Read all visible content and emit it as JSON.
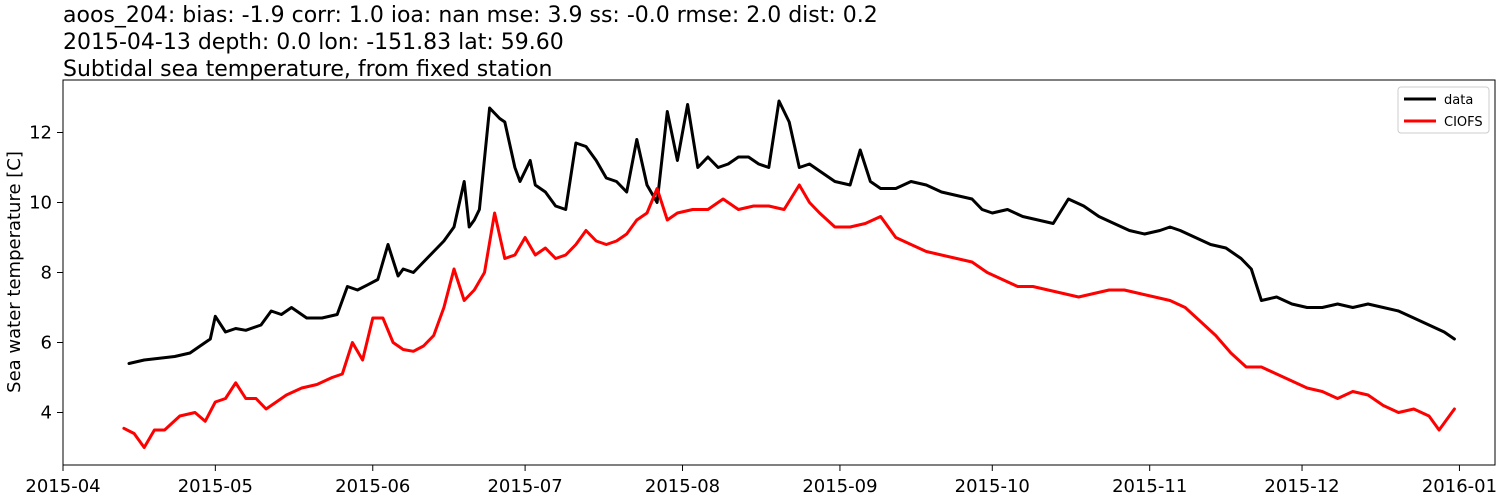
{
  "chart_data": {
    "type": "line",
    "title_lines": [
      "aoos_204: bias: -1.9  corr: 1.0  ioa: nan  mse: 3.9  ss: -0.0  rmse: 2.0  dist: 0.2",
      "2015-04-13 depth: 0.0 lon: -151.83 lat: 59.60",
      "Subtidal sea temperature, from fixed station"
    ],
    "xlabel": "",
    "ylabel": "Sea water temperature [C]",
    "xlim": [
      "2015-04-01",
      "2016-01-08"
    ],
    "ylim": [
      2.5,
      13.5
    ],
    "x_ticks": [
      "2015-04-01",
      "2015-05-01",
      "2015-06-01",
      "2015-07-01",
      "2015-08-01",
      "2015-09-01",
      "2015-10-01",
      "2015-11-01",
      "2015-12-01",
      "2016-01-01"
    ],
    "x_tick_labels": [
      "2015-04",
      "2015-05",
      "2015-06",
      "2015-07",
      "2015-08",
      "2015-09",
      "2015-10",
      "2015-11",
      "2015-12",
      "2016-01"
    ],
    "y_ticks": [
      4,
      6,
      8,
      10,
      12
    ],
    "y_tick_labels": [
      "4",
      "6",
      "8",
      "10",
      "12"
    ],
    "grid": false,
    "legend_position": "top-right",
    "series": [
      {
        "name": "data",
        "color": "#000000",
        "x": [
          "2015-04-14",
          "2015-04-17",
          "2015-04-20",
          "2015-04-23",
          "2015-04-26",
          "2015-04-28",
          "2015-04-30",
          "2015-05-01",
          "2015-05-03",
          "2015-05-05",
          "2015-05-07",
          "2015-05-10",
          "2015-05-12",
          "2015-05-14",
          "2015-05-16",
          "2015-05-19",
          "2015-05-22",
          "2015-05-25",
          "2015-05-27",
          "2015-05-29",
          "2015-05-31",
          "2015-06-02",
          "2015-06-04",
          "2015-06-06",
          "2015-06-07",
          "2015-06-09",
          "2015-06-11",
          "2015-06-13",
          "2015-06-15",
          "2015-06-17",
          "2015-06-19",
          "2015-06-20",
          "2015-06-21",
          "2015-06-22",
          "2015-06-24",
          "2015-06-26",
          "2015-06-27",
          "2015-06-29",
          "2015-06-30",
          "2015-07-02",
          "2015-07-03",
          "2015-07-05",
          "2015-07-07",
          "2015-07-09",
          "2015-07-11",
          "2015-07-13",
          "2015-07-15",
          "2015-07-17",
          "2015-07-19",
          "2015-07-21",
          "2015-07-23",
          "2015-07-25",
          "2015-07-27",
          "2015-07-29",
          "2015-07-31",
          "2015-08-02",
          "2015-08-04",
          "2015-08-06",
          "2015-08-08",
          "2015-08-10",
          "2015-08-12",
          "2015-08-14",
          "2015-08-16",
          "2015-08-18",
          "2015-08-20",
          "2015-08-22",
          "2015-08-24",
          "2015-08-26",
          "2015-08-28",
          "2015-08-31",
          "2015-09-03",
          "2015-09-05",
          "2015-09-07",
          "2015-09-09",
          "2015-09-12",
          "2015-09-15",
          "2015-09-18",
          "2015-09-21",
          "2015-09-24",
          "2015-09-27",
          "2015-09-29",
          "2015-10-01",
          "2015-10-04",
          "2015-10-07",
          "2015-10-10",
          "2015-10-13",
          "2015-10-16",
          "2015-10-19",
          "2015-10-22",
          "2015-10-25",
          "2015-10-28",
          "2015-10-31",
          "2015-11-03",
          "2015-11-05",
          "2015-11-07",
          "2015-11-10",
          "2015-11-13",
          "2015-11-16",
          "2015-11-19",
          "2015-11-21",
          "2015-11-23",
          "2015-11-26",
          "2015-11-29",
          "2015-12-02",
          "2015-12-05",
          "2015-12-08",
          "2015-12-11",
          "2015-12-14",
          "2015-12-17",
          "2015-12-20",
          "2015-12-23",
          "2015-12-26",
          "2015-12-29",
          "2015-12-31"
        ],
        "y": [
          5.4,
          5.5,
          5.55,
          5.6,
          5.7,
          5.9,
          6.1,
          6.75,
          6.3,
          6.4,
          6.35,
          6.5,
          6.9,
          6.8,
          7.0,
          6.7,
          6.7,
          6.8,
          7.6,
          7.5,
          7.65,
          7.8,
          8.8,
          7.9,
          8.1,
          8.0,
          8.3,
          8.6,
          8.9,
          9.3,
          10.6,
          9.3,
          9.5,
          9.8,
          12.7,
          12.4,
          12.3,
          11.0,
          10.6,
          11.2,
          10.5,
          10.3,
          9.9,
          9.8,
          11.7,
          11.6,
          11.2,
          10.7,
          10.6,
          10.3,
          11.8,
          10.5,
          10.0,
          12.6,
          11.2,
          12.8,
          11.0,
          11.3,
          11.0,
          11.1,
          11.3,
          11.3,
          11.1,
          11.0,
          12.9,
          12.3,
          11.0,
          11.1,
          10.9,
          10.6,
          10.5,
          11.5,
          10.6,
          10.4,
          10.4,
          10.6,
          10.5,
          10.3,
          10.2,
          10.1,
          9.8,
          9.7,
          9.8,
          9.6,
          9.5,
          9.4,
          10.1,
          9.9,
          9.6,
          9.4,
          9.2,
          9.1,
          9.2,
          9.3,
          9.2,
          9.0,
          8.8,
          8.7,
          8.4,
          8.1,
          7.2,
          7.3,
          7.1,
          7.0,
          7.0,
          7.1,
          7.0,
          7.1,
          7.0,
          6.9,
          6.7,
          6.5,
          6.3,
          6.1
        ]
      },
      {
        "name": "CIOFS",
        "color": "#ff0000",
        "x": [
          "2015-04-13",
          "2015-04-15",
          "2015-04-17",
          "2015-04-19",
          "2015-04-21",
          "2015-04-24",
          "2015-04-27",
          "2015-04-29",
          "2015-05-01",
          "2015-05-03",
          "2015-05-05",
          "2015-05-07",
          "2015-05-09",
          "2015-05-11",
          "2015-05-13",
          "2015-05-15",
          "2015-05-18",
          "2015-05-21",
          "2015-05-24",
          "2015-05-26",
          "2015-05-28",
          "2015-05-30",
          "2015-06-01",
          "2015-06-03",
          "2015-06-05",
          "2015-06-07",
          "2015-06-09",
          "2015-06-11",
          "2015-06-13",
          "2015-06-15",
          "2015-06-17",
          "2015-06-19",
          "2015-06-21",
          "2015-06-23",
          "2015-06-25",
          "2015-06-27",
          "2015-06-29",
          "2015-07-01",
          "2015-07-03",
          "2015-07-05",
          "2015-07-07",
          "2015-07-09",
          "2015-07-11",
          "2015-07-13",
          "2015-07-15",
          "2015-07-17",
          "2015-07-19",
          "2015-07-21",
          "2015-07-23",
          "2015-07-25",
          "2015-07-27",
          "2015-07-29",
          "2015-07-31",
          "2015-08-03",
          "2015-08-06",
          "2015-08-09",
          "2015-08-12",
          "2015-08-15",
          "2015-08-18",
          "2015-08-21",
          "2015-08-24",
          "2015-08-26",
          "2015-08-28",
          "2015-08-31",
          "2015-09-03",
          "2015-09-06",
          "2015-09-09",
          "2015-09-12",
          "2015-09-15",
          "2015-09-18",
          "2015-09-21",
          "2015-09-24",
          "2015-09-27",
          "2015-09-30",
          "2015-10-03",
          "2015-10-06",
          "2015-10-09",
          "2015-10-12",
          "2015-10-15",
          "2015-10-18",
          "2015-10-21",
          "2015-10-24",
          "2015-10-27",
          "2015-10-30",
          "2015-11-02",
          "2015-11-05",
          "2015-11-08",
          "2015-11-11",
          "2015-11-14",
          "2015-11-17",
          "2015-11-20",
          "2015-11-23",
          "2015-11-26",
          "2015-11-29",
          "2015-12-02",
          "2015-12-05",
          "2015-12-08",
          "2015-12-11",
          "2015-12-14",
          "2015-12-17",
          "2015-12-20",
          "2015-12-23",
          "2015-12-26",
          "2015-12-28",
          "2015-12-31"
        ],
        "y": [
          3.55,
          3.4,
          3.0,
          3.5,
          3.5,
          3.9,
          4.0,
          3.75,
          4.3,
          4.4,
          4.85,
          4.4,
          4.4,
          4.1,
          4.3,
          4.5,
          4.7,
          4.8,
          5.0,
          5.1,
          6.0,
          5.5,
          6.7,
          6.7,
          6.0,
          5.8,
          5.75,
          5.9,
          6.2,
          7.0,
          8.1,
          7.2,
          7.5,
          8.0,
          9.7,
          8.4,
          8.5,
          9.0,
          8.5,
          8.7,
          8.4,
          8.5,
          8.8,
          9.2,
          8.9,
          8.8,
          8.9,
          9.1,
          9.5,
          9.7,
          10.4,
          9.5,
          9.7,
          9.8,
          9.8,
          10.1,
          9.8,
          9.9,
          9.9,
          9.8,
          10.5,
          10.0,
          9.7,
          9.3,
          9.3,
          9.4,
          9.6,
          9.0,
          8.8,
          8.6,
          8.5,
          8.4,
          8.3,
          8.0,
          7.8,
          7.6,
          7.6,
          7.5,
          7.4,
          7.3,
          7.4,
          7.5,
          7.5,
          7.4,
          7.3,
          7.2,
          7.0,
          6.6,
          6.2,
          5.7,
          5.3,
          5.3,
          5.1,
          4.9,
          4.7,
          4.6,
          4.4,
          4.6,
          4.5,
          4.2,
          4.0,
          4.1,
          3.9,
          3.5,
          4.1
        ]
      }
    ]
  }
}
